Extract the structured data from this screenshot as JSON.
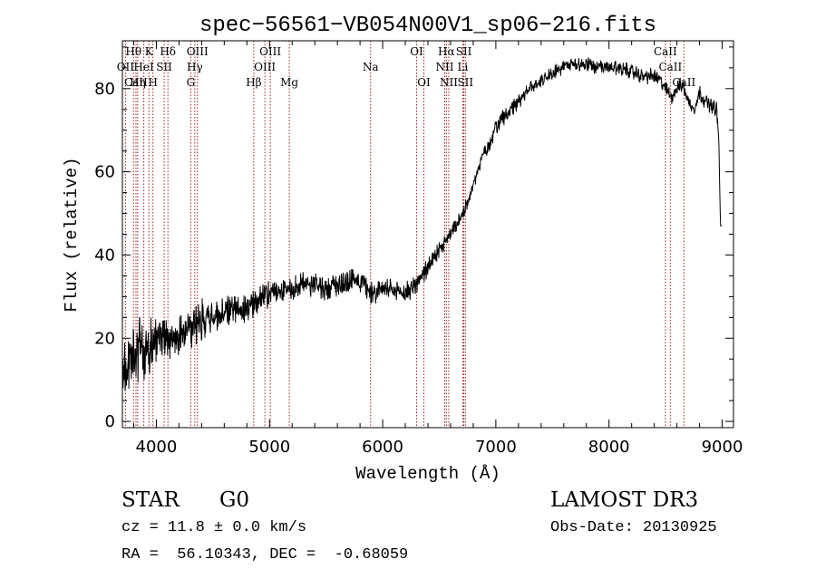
{
  "chart_data": {
    "type": "line",
    "title": "spec−56561−VB054N00V1_sp06−216.fits",
    "xlabel": "Wavelength (Å)",
    "ylabel": "Flux (relative)",
    "xlim": [
      3700,
      9100
    ],
    "ylim": [
      -1.5,
      91.5
    ],
    "xticks": [
      4000,
      5000,
      6000,
      7000,
      8000,
      9000
    ],
    "yticks": [
      0,
      20,
      40,
      60,
      80
    ],
    "grid": false,
    "series": [
      {
        "name": "flux",
        "color": "#000000",
        "x": [
          3700,
          3750,
          3800,
          3850,
          3900,
          3950,
          4000,
          4050,
          4100,
          4150,
          4200,
          4300,
          4400,
          4500,
          4600,
          4700,
          4800,
          4900,
          5000,
          5100,
          5200,
          5300,
          5400,
          5500,
          5600,
          5700,
          5800,
          5900,
          6000,
          6100,
          6200,
          6300,
          6400,
          6500,
          6600,
          6700,
          6750,
          6800,
          6850,
          6900,
          6950,
          7000,
          7100,
          7200,
          7300,
          7400,
          7500,
          7600,
          7700,
          7800,
          7900,
          8000,
          8100,
          8200,
          8300,
          8400,
          8450,
          8500,
          8550,
          8600,
          8650,
          8700,
          8750,
          8800,
          8850,
          8900,
          8950,
          8970,
          8985,
          9000
        ],
        "y": [
          10,
          13,
          15,
          17,
          16,
          18,
          19,
          21,
          20,
          20,
          21,
          23,
          24,
          25,
          26,
          27,
          28,
          29,
          31,
          31,
          32,
          33,
          33,
          32,
          33,
          34,
          34,
          31,
          32,
          31,
          31,
          33,
          37,
          41,
          45,
          49,
          53,
          57,
          61,
          65,
          67,
          71,
          74,
          77,
          80,
          82,
          84,
          85,
          86,
          86,
          85,
          85,
          85,
          84,
          83,
          83,
          82,
          80,
          78,
          80,
          81,
          77,
          75,
          79,
          77,
          76,
          75,
          68,
          47,
          47
        ]
      }
    ],
    "spectral_lines": [
      {
        "label": "Hθ",
        "wavelength": 3798,
        "row": 1
      },
      {
        "label": "OII",
        "wavelength": 3727,
        "row": 2
      },
      {
        "label": "CaII",
        "wavelength": 3820,
        "row": 3
      },
      {
        "label": "Hη",
        "wavelength": 3835,
        "row": 3
      },
      {
        "label": "K",
        "wavelength": 3934,
        "row": 1
      },
      {
        "label": "HeI",
        "wavelength": 3889,
        "row": 2
      },
      {
        "label": "SII",
        "wavelength": 4069,
        "row": 2
      },
      {
        "label": "H",
        "wavelength": 3970,
        "row": 3
      },
      {
        "label": "Hδ",
        "wavelength": 4102,
        "row": 1
      },
      {
        "label": "OIII",
        "wavelength": 4363,
        "row": 1
      },
      {
        "label": "Hγ",
        "wavelength": 4340,
        "row": 2
      },
      {
        "label": "G",
        "wavelength": 4304,
        "row": 3
      },
      {
        "label": "OIII",
        "wavelength": 5007,
        "row": 1
      },
      {
        "label": "OIII",
        "wavelength": 4959,
        "row": 2
      },
      {
        "label": "Hβ",
        "wavelength": 4861,
        "row": 3
      },
      {
        "label": "Mg",
        "wavelength": 5175,
        "row": 3
      },
      {
        "label": "Na",
        "wavelength": 5893,
        "row": 2
      },
      {
        "label": "OI",
        "wavelength": 6300,
        "row": 1
      },
      {
        "label": "OI",
        "wavelength": 6364,
        "row": 3
      },
      {
        "label": "Hα",
        "wavelength": 6563,
        "row": 1
      },
      {
        "label": "NII",
        "wavelength": 6548,
        "row": 2
      },
      {
        "label": "NII",
        "wavelength": 6584,
        "row": 3
      },
      {
        "label": "SII",
        "wavelength": 6717,
        "row": 1
      },
      {
        "label": "Li",
        "wavelength": 6708,
        "row": 2
      },
      {
        "label": "SII",
        "wavelength": 6731,
        "row": 3
      },
      {
        "label": "CaII",
        "wavelength": 8498,
        "row": 1
      },
      {
        "label": "CaII",
        "wavelength": 8542,
        "row": 2
      },
      {
        "label": "CaII",
        "wavelength": 8662,
        "row": 3
      }
    ]
  },
  "info": {
    "object_class": "STAR",
    "subclass": "G0",
    "survey": "LAMOST DR3",
    "redshift_line": "cz = 11.8 ± 0.0 km/s",
    "obs_date_line": "Obs-Date: 20130925",
    "coords_line": "RA =  56.10343, DEC =  -0.68059"
  },
  "colors": {
    "line_marker": "#a02020",
    "axis": "#000000",
    "background": "#ffffff"
  }
}
